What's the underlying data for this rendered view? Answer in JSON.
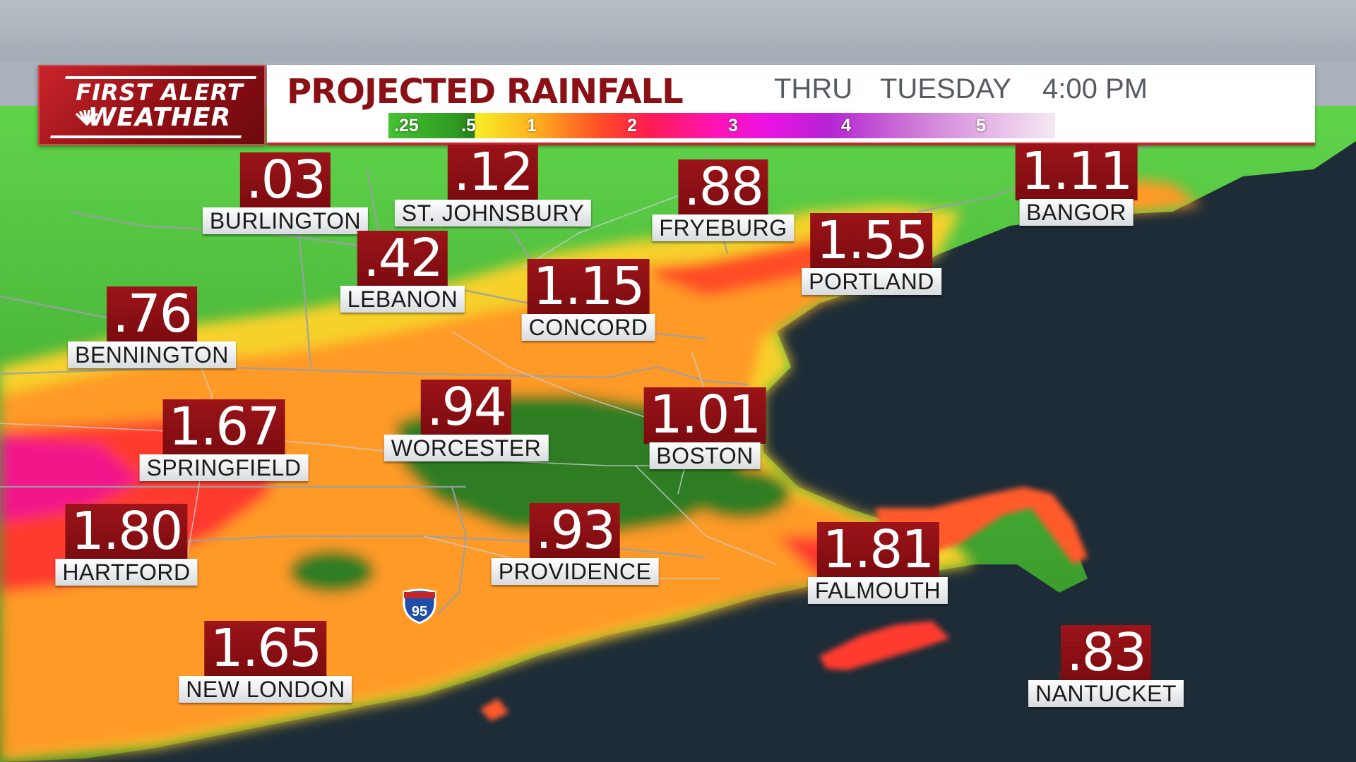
{
  "logo": {
    "line1": "FIRST ALERT",
    "line2": "WEATHER"
  },
  "header": {
    "title": "PROJECTED RAINFALL",
    "thru": "THRU",
    "day": "TUESDAY",
    "time": "4:00 PM"
  },
  "legend": {
    "labels": [
      ".25",
      ".5",
      "1",
      "2",
      "3",
      "4",
      "5"
    ]
  },
  "highway_shield": {
    "icon": "interstate-shield-icon",
    "number": "95"
  },
  "cities": [
    {
      "name": "BURLINGTON",
      "value": ".03"
    },
    {
      "name": "ST. JOHNSBURY",
      "value": ".12"
    },
    {
      "name": "FRYEBURG",
      "value": ".88"
    },
    {
      "name": "BANGOR",
      "value": "1.11"
    },
    {
      "name": "LEBANON",
      "value": ".42"
    },
    {
      "name": "PORTLAND",
      "value": "1.55"
    },
    {
      "name": "CONCORD",
      "value": "1.15"
    },
    {
      "name": "BENNINGTON",
      "value": ".76"
    },
    {
      "name": "WORCESTER",
      "value": ".94"
    },
    {
      "name": "BOSTON",
      "value": "1.01"
    },
    {
      "name": "SPRINGFIELD",
      "value": "1.67"
    },
    {
      "name": "HARTFORD",
      "value": "1.80"
    },
    {
      "name": "PROVIDENCE",
      "value": ".93"
    },
    {
      "name": "FALMOUTH",
      "value": "1.81"
    },
    {
      "name": "NEW LONDON",
      "value": "1.65"
    },
    {
      "name": "NANTUCKET",
      "value": ".83"
    }
  ],
  "colors": {
    "ocean": "#1c2b36",
    "label_red": "#8b0f13",
    "title_red": "#8a1015",
    "brand_red": "#c6262c"
  }
}
